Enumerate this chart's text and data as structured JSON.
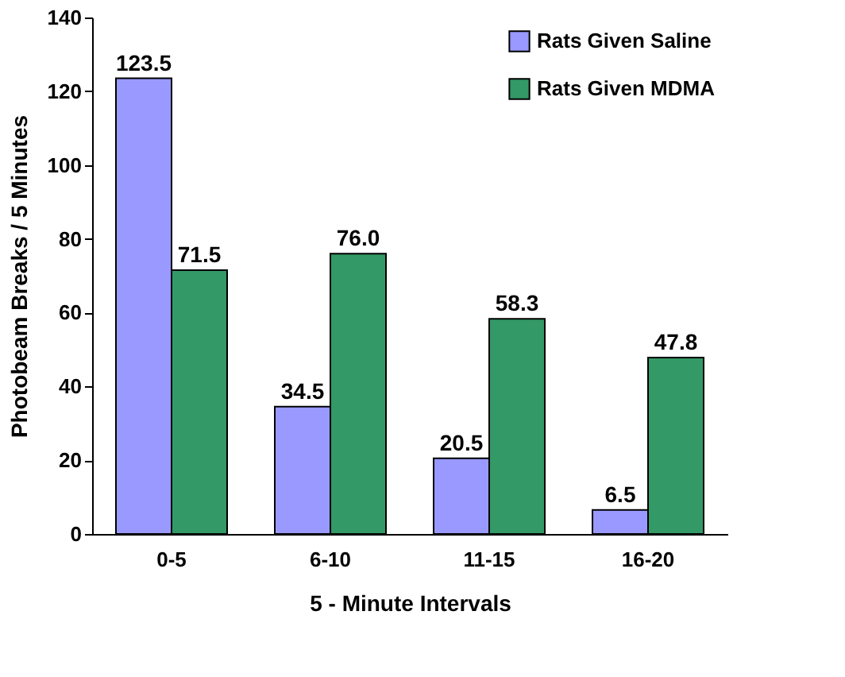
{
  "chart_data": {
    "type": "bar",
    "xlabel": "5 - Minute Intervals",
    "ylabel": "Photobeam Breaks / 5 Minutes",
    "categories": [
      "0-5",
      "6-10",
      "11-15",
      "16-20"
    ],
    "series": [
      {
        "name": "Rats Given Saline",
        "color": "#9999ff",
        "values": [
          123.5,
          34.5,
          20.5,
          6.5
        ],
        "value_labels": [
          "123.5",
          "34.5",
          "20.5",
          "6.5"
        ]
      },
      {
        "name": "Rats Given MDMA",
        "color": "#339966",
        "values": [
          71.5,
          76.0,
          58.3,
          47.8
        ],
        "value_labels": [
          "71.5",
          "76.0",
          "58.3",
          "47.8"
        ]
      }
    ],
    "ylim": [
      0,
      140
    ],
    "yticks": [
      0,
      20,
      40,
      60,
      80,
      100,
      120,
      140
    ],
    "grid": false,
    "legend": "top right"
  }
}
